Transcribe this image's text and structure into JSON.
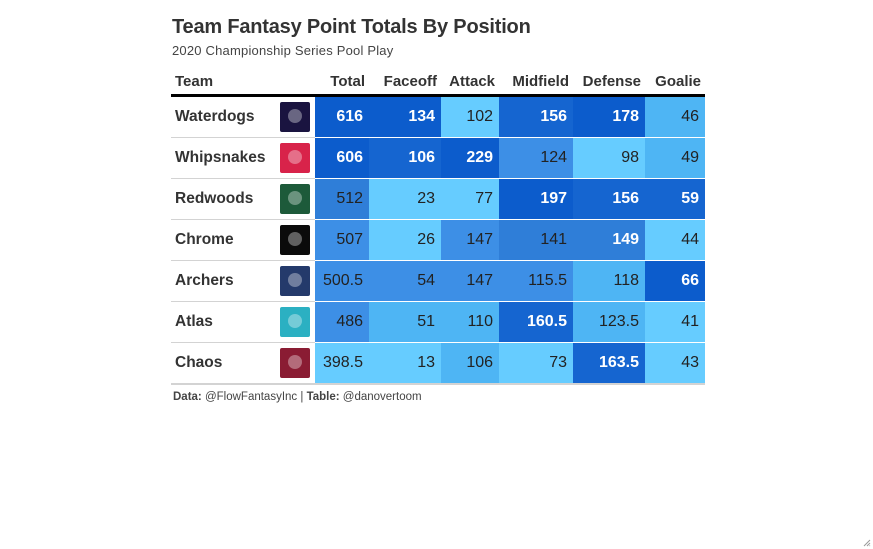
{
  "title": "Team Fantasy Point Totals By Position",
  "subtitle": "2020 Championship Series Pool Play",
  "columns": [
    "Team",
    "Total",
    "Faceoff",
    "Attack",
    "Midfield",
    "Defense",
    "Goalie"
  ],
  "rows": [
    {
      "team": "Waterdogs",
      "logo_color": "#1a1440",
      "values": [
        "616",
        "134",
        "102",
        "156",
        "178",
        "46"
      ]
    },
    {
      "team": "Whipsnakes",
      "logo_color": "#d8234a",
      "values": [
        "606",
        "106",
        "229",
        "124",
        "98",
        "49"
      ]
    },
    {
      "team": "Redwoods",
      "logo_color": "#1d5a3a",
      "values": [
        "512",
        "23",
        "77",
        "197",
        "156",
        "59"
      ]
    },
    {
      "team": "Chrome",
      "logo_color": "#0b0b0b",
      "values": [
        "507",
        "26",
        "147",
        "141",
        "149",
        "44"
      ]
    },
    {
      "team": "Archers",
      "logo_color": "#243a6b",
      "values": [
        "500.5",
        "54",
        "147",
        "115.5",
        "118",
        "66"
      ]
    },
    {
      "team": "Atlas",
      "logo_color": "#2bb0c2",
      "values": [
        "486",
        "51",
        "110",
        "160.5",
        "123.5",
        "41"
      ]
    },
    {
      "team": "Chaos",
      "logo_color": "#8a1c33",
      "values": [
        "398.5",
        "13",
        "106",
        "73",
        "163.5",
        "43"
      ]
    }
  ],
  "source": {
    "data_label": "Data:",
    "data_value": "@FlowFantasyInc |",
    "table_label": "Table:",
    "table_value": "@danovertoom"
  },
  "colors": {
    "lightest": "#66ccff",
    "light": "#4eb5f4",
    "mid": "#3d8fe6",
    "midDark": "#2f7ed8",
    "dark": "#1565d0",
    "darkest": "#0c5ccc"
  },
  "icons": {
    "resize": "resize-handle-icon"
  }
}
